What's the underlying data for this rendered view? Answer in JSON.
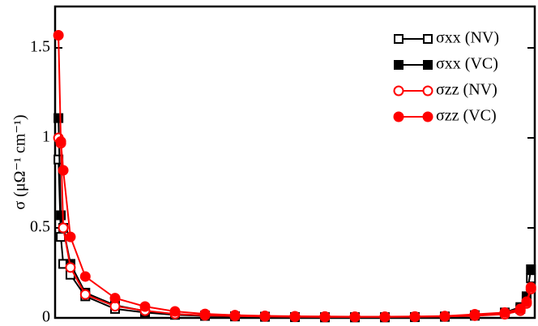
{
  "chart_data": {
    "type": "line",
    "y_label": "σ (μΩ⁻¹ cm⁻¹)",
    "x": [
      0.7,
      1.2,
      1.7,
      3.2,
      6.3,
      12.5,
      18.75,
      25,
      31.25,
      37.5,
      43.75,
      50,
      56.25,
      62.5,
      68.75,
      75,
      81.25,
      87.5,
      93.75,
      97,
      98.3,
      99.2
    ],
    "xlim": [
      0,
      100
    ],
    "ylim": [
      0,
      1.73
    ],
    "yticks": [
      0,
      0.5,
      1,
      1.5
    ],
    "legend": "top-right",
    "series": [
      {
        "name": "σxx (NV)",
        "color": "#000000",
        "marker": "open-square",
        "values": [
          0.88,
          0.45,
          0.3,
          0.24,
          0.12,
          0.05,
          0.03,
          0.017,
          0.011,
          0.008,
          0.006,
          0.004,
          0.003,
          0.003,
          0.003,
          0.004,
          0.006,
          0.012,
          0.025,
          0.05,
          0.1,
          0.22
        ]
      },
      {
        "name": "σxx (VC)",
        "color": "#000000",
        "marker": "filled-square",
        "values": [
          1.11,
          0.57,
          0.5,
          0.3,
          0.14,
          0.07,
          0.038,
          0.02,
          0.013,
          0.009,
          0.007,
          0.005,
          0.004,
          0.004,
          0.004,
          0.005,
          0.008,
          0.015,
          0.03,
          0.06,
          0.12,
          0.27
        ]
      },
      {
        "name": "σzz (NV)",
        "color": "#ff0000",
        "marker": "open-circle",
        "values": [
          1.0,
          0.97,
          0.5,
          0.28,
          0.13,
          0.065,
          0.04,
          0.022,
          0.014,
          0.01,
          0.008,
          0.006,
          0.005,
          0.005,
          0.005,
          0.006,
          0.008,
          0.012,
          0.02,
          0.04,
          0.08,
          0.16
        ]
      },
      {
        "name": "σzz (VC)",
        "color": "#ff0000",
        "marker": "filled-circle",
        "values": [
          1.57,
          0.98,
          0.82,
          0.45,
          0.23,
          0.11,
          0.063,
          0.036,
          0.022,
          0.015,
          0.011,
          0.009,
          0.008,
          0.007,
          0.007,
          0.008,
          0.01,
          0.02,
          0.03,
          0.05,
          0.09,
          0.17
        ]
      }
    ]
  }
}
